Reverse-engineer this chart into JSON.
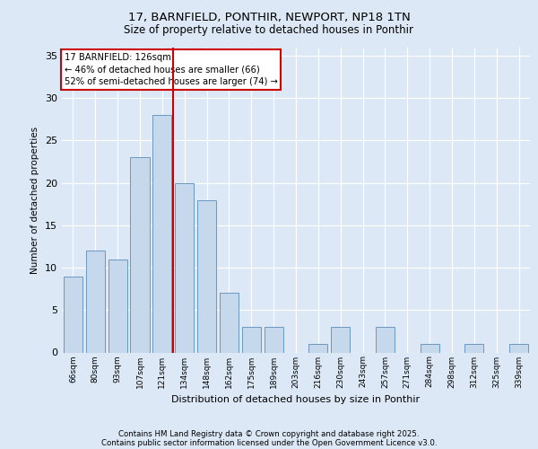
{
  "title1": "17, BARNFIELD, PONTHIR, NEWPORT, NP18 1TN",
  "title2": "Size of property relative to detached houses in Ponthir",
  "xlabel": "Distribution of detached houses by size in Ponthir",
  "ylabel": "Number of detached properties",
  "categories": [
    "66sqm",
    "80sqm",
    "93sqm",
    "107sqm",
    "121sqm",
    "134sqm",
    "148sqm",
    "162sqm",
    "175sqm",
    "189sqm",
    "203sqm",
    "216sqm",
    "230sqm",
    "243sqm",
    "257sqm",
    "271sqm",
    "284sqm",
    "298sqm",
    "312sqm",
    "325sqm",
    "339sqm"
  ],
  "values": [
    9,
    12,
    11,
    23,
    28,
    20,
    18,
    7,
    3,
    3,
    0,
    1,
    3,
    0,
    3,
    0,
    1,
    0,
    1,
    0,
    1
  ],
  "bar_color": "#c5d8ec",
  "bar_edge_color": "#5b8db8",
  "vline_x_index": 4,
  "vline_color": "#cc0000",
  "annotation_text": "17 BARNFIELD: 126sqm\n← 46% of detached houses are smaller (66)\n52% of semi-detached houses are larger (74) →",
  "annotation_box_color": "#ffffff",
  "annotation_box_edge": "#cc0000",
  "bg_color": "#dce8f5",
  "plot_bg_color": "#dce8f5",
  "ylim": [
    0,
    36
  ],
  "yticks": [
    0,
    5,
    10,
    15,
    20,
    25,
    30,
    35
  ],
  "footer1": "Contains HM Land Registry data © Crown copyright and database right 2025.",
  "footer2": "Contains public sector information licensed under the Open Government Licence v3.0."
}
